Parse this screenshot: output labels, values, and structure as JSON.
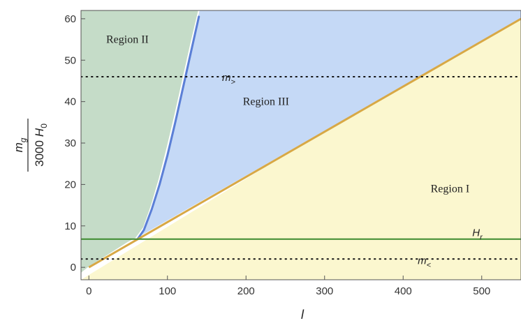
{
  "chart_data": {
    "type": "area",
    "xlabel": "l",
    "ylabel": {
      "numerator": "m",
      "numerator_sub": "g",
      "denominator_number": "3000",
      "denominator_symbol": "H",
      "denominator_sub": "0"
    },
    "xlim": [
      -10,
      550
    ],
    "ylim": [
      -3,
      62
    ],
    "xticks": [
      0,
      100,
      200,
      300,
      400,
      500
    ],
    "yticks": [
      0,
      10,
      20,
      30,
      40,
      50,
      60
    ],
    "grid": false,
    "regions": [
      {
        "label": "Region I",
        "color": "#fbf7cf",
        "label_at": [
          435,
          19
        ]
      },
      {
        "label": "Region II",
        "color": "#c5dcc8",
        "label_at": [
          22,
          55
        ]
      },
      {
        "label": "Region III",
        "color": "#c5d9f6",
        "label_at": [
          196,
          40
        ]
      }
    ],
    "series": [
      {
        "kind": "diagonal",
        "color": "#d8a845",
        "x": [
          0,
          550
        ],
        "y": [
          0,
          60
        ]
      },
      {
        "kind": "blue-curve",
        "color": "#5b7fd6",
        "x": [
          62,
          70,
          80,
          90,
          100,
          110,
          120,
          130,
          140
        ],
        "y": [
          6.8,
          9,
          14,
          20,
          27,
          35,
          43.5,
          52,
          60.5
        ]
      },
      {
        "kind": "region-boundary",
        "color": "#ffffff",
        "x": [
          -10,
          0,
          10,
          20,
          30,
          40,
          50,
          60,
          70,
          80,
          90,
          100,
          110,
          120,
          130,
          140
        ],
        "y": [
          -1.5,
          0,
          1.2,
          2.4,
          3.6,
          4.8,
          6.0,
          7.0,
          9.6,
          15,
          21.5,
          29,
          37,
          45.5,
          54,
          62
        ]
      },
      {
        "name": "H_r",
        "label": "H",
        "label_sub": "r",
        "kind": "horizontal",
        "style": "solid",
        "color": "#3d8a2e",
        "y": 6.8,
        "label_at": [
          488,
          7.5
        ]
      },
      {
        "name": "m_>",
        "label": "m",
        "label_sub": ">",
        "kind": "horizontal",
        "style": "dotted",
        "color": "#111111",
        "y": 46,
        "label_at": [
          178,
          46
        ]
      },
      {
        "name": "m_<",
        "label": "m",
        "label_sub": "<",
        "kind": "horizontal",
        "style": "dotted",
        "color": "#111111",
        "y": 2,
        "label_at": [
          427,
          1.5
        ]
      }
    ]
  }
}
